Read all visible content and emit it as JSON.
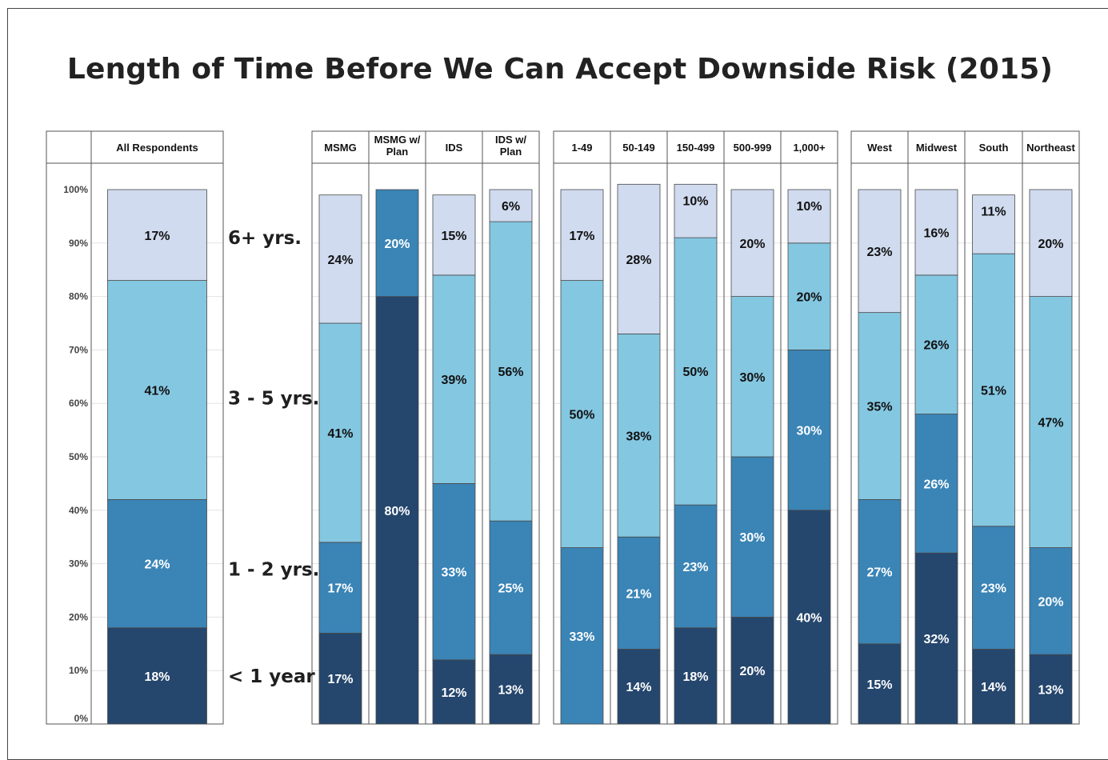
{
  "chart_data": {
    "type": "bar",
    "title": "Length of Time Before We Can Accept Downside Risk (2015)",
    "stacked": true,
    "ylim": [
      0,
      100
    ],
    "yticks": [
      "0%",
      "10%",
      "20%",
      "30%",
      "40%",
      "50%",
      "60%",
      "70%",
      "80%",
      "90%",
      "100%"
    ],
    "category_labels": [
      "< 1 year",
      "1 - 2 yrs.",
      "3 - 5 yrs.",
      "6+ yrs."
    ],
    "colors": [
      "#25466d",
      "#3a84b6",
      "#84c7e1",
      "#d0dbef"
    ],
    "label_colors": [
      "#ffffff",
      "#ffffff",
      "#111111",
      "#111111"
    ],
    "groups": [
      {
        "columns": [
          {
            "name": "All Respondents",
            "values": [
              18,
              24,
              41,
              17
            ],
            "labels": [
              "18%",
              "24%",
              "41%",
              "17%"
            ]
          }
        ]
      },
      {
        "columns": [
          {
            "name": "MSMG",
            "values": [
              17,
              17,
              41,
              24
            ],
            "labels": [
              "17%",
              "17%",
              "41%",
              "24%"
            ]
          },
          {
            "name": "MSMG w/\nPlan",
            "values": [
              80,
              20,
              0,
              0
            ],
            "labels": [
              "80%",
              "20%",
              "",
              ""
            ]
          },
          {
            "name": "IDS",
            "values": [
              12,
              33,
              39,
              15
            ],
            "labels": [
              "12%",
              "33%",
              "39%",
              "15%"
            ]
          },
          {
            "name": "IDS w/\nPlan",
            "values": [
              13,
              25,
              56,
              6
            ],
            "labels": [
              "13%",
              "25%",
              "56%",
              "6%"
            ]
          }
        ]
      },
      {
        "columns": [
          {
            "name": "1-49",
            "values": [
              0,
              33,
              50,
              17
            ],
            "labels": [
              "",
              "33%",
              "50%",
              "17%"
            ]
          },
          {
            "name": "50-149",
            "values": [
              14,
              21,
              38,
              28
            ],
            "labels": [
              "14%",
              "21%",
              "38%",
              "28%"
            ]
          },
          {
            "name": "150-499",
            "values": [
              18,
              23,
              50,
              10
            ],
            "labels": [
              "18%",
              "23%",
              "50%",
              "10%"
            ]
          },
          {
            "name": "500-999",
            "values": [
              20,
              30,
              30,
              20
            ],
            "labels": [
              "20%",
              "30%",
              "30%",
              "20%"
            ]
          },
          {
            "name": "1,000+",
            "values": [
              40,
              30,
              20,
              10
            ],
            "labels": [
              "40%",
              "30%",
              "20%",
              "10%"
            ]
          }
        ]
      },
      {
        "columns": [
          {
            "name": "West",
            "values": [
              15,
              27,
              35,
              23
            ],
            "labels": [
              "15%",
              "27%",
              "35%",
              "23%"
            ]
          },
          {
            "name": "Midwest",
            "values": [
              32,
              26,
              26,
              16
            ],
            "labels": [
              "32%",
              "26%",
              "26%",
              "16%"
            ]
          },
          {
            "name": "South",
            "values": [
              14,
              23,
              51,
              11
            ],
            "labels": [
              "14%",
              "23%",
              "51%",
              "11%"
            ]
          },
          {
            "name": "Northeast",
            "values": [
              13,
              20,
              47,
              20
            ],
            "labels": [
              "13%",
              "20%",
              "47%",
              "20%"
            ]
          }
        ]
      }
    ]
  }
}
